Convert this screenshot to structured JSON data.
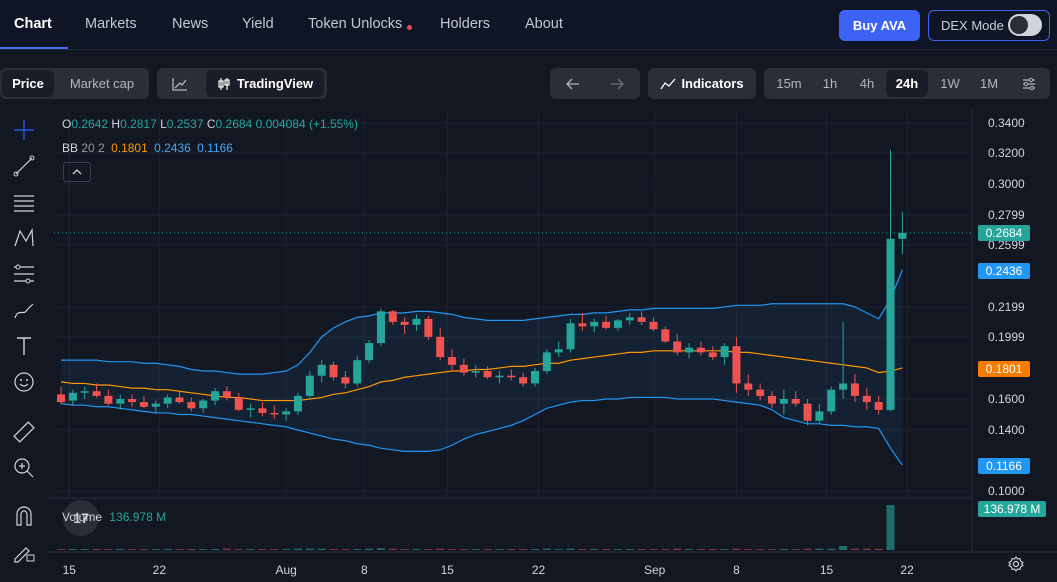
{
  "nav": {
    "tabs": [
      {
        "label": "Chart",
        "active": true
      },
      {
        "label": "Markets"
      },
      {
        "label": "News"
      },
      {
        "label": "Yield"
      },
      {
        "label": "Token Unlocks"
      },
      {
        "label": "Holders"
      },
      {
        "label": "About"
      }
    ],
    "buy_label": "Buy AVA",
    "dex_label": "DEX Mode"
  },
  "toolbar": {
    "price_label": "Price",
    "marketcap_label": "Market cap",
    "tradingview_label": "TradingView",
    "indicators_label": "Indicators",
    "timeframes": [
      "15m",
      "1h",
      "4h",
      "24h",
      "1W",
      "1M"
    ],
    "active_timeframe": "24h"
  },
  "legend": {
    "o_label": "O",
    "o": "0.2642",
    "h_label": "H",
    "h": "0.2817",
    "l_label": "L",
    "l": "0.2537",
    "c_label": "C",
    "c": "0.2684",
    "change": "0.004084 (+1.55%)",
    "bb_label": "BB",
    "bb_params": "20 2",
    "bb_mid": "0.1801",
    "bb_upper": "0.2436",
    "bb_lower": "0.1166"
  },
  "volume": {
    "label": "Volume",
    "value": "136.978 M"
  },
  "colors": {
    "up": "#26a69a",
    "down": "#ef5350",
    "bb_band": "#2196f3",
    "bb_mid": "#ff9800",
    "accent": "#3d63f5"
  },
  "chart_data": {
    "type": "candlestick",
    "y_ticks": [
      "0.3400",
      "0.3200",
      "0.3000",
      "0.2799",
      "0.2599",
      "0.2199",
      "0.1999",
      "0.1600",
      "0.1400",
      "0.1000"
    ],
    "ylim": [
      0.1,
      0.34
    ],
    "x_ticks": [
      "15",
      "22",
      "Aug",
      "8",
      "15",
      "22",
      "Sep",
      "8",
      "15",
      "22"
    ],
    "price_tags": {
      "last": "0.2684",
      "upper": "0.2436",
      "mid": "0.1801",
      "lower": "0.1166",
      "volume": "136.978 M"
    },
    "candles": [
      {
        "o": 0.163,
        "h": 0.168,
        "l": 0.157,
        "c": 0.158
      },
      {
        "o": 0.159,
        "h": 0.166,
        "l": 0.156,
        "c": 0.164
      },
      {
        "o": 0.164,
        "h": 0.168,
        "l": 0.16,
        "c": 0.165
      },
      {
        "o": 0.165,
        "h": 0.17,
        "l": 0.161,
        "c": 0.162
      },
      {
        "o": 0.162,
        "h": 0.166,
        "l": 0.156,
        "c": 0.157
      },
      {
        "o": 0.157,
        "h": 0.163,
        "l": 0.153,
        "c": 0.16
      },
      {
        "o": 0.16,
        "h": 0.163,
        "l": 0.155,
        "c": 0.158
      },
      {
        "o": 0.158,
        "h": 0.162,
        "l": 0.154,
        "c": 0.155
      },
      {
        "o": 0.155,
        "h": 0.159,
        "l": 0.151,
        "c": 0.157
      },
      {
        "o": 0.157,
        "h": 0.163,
        "l": 0.154,
        "c": 0.161
      },
      {
        "o": 0.161,
        "h": 0.165,
        "l": 0.157,
        "c": 0.158
      },
      {
        "o": 0.158,
        "h": 0.161,
        "l": 0.152,
        "c": 0.154
      },
      {
        "o": 0.154,
        "h": 0.16,
        "l": 0.151,
        "c": 0.159
      },
      {
        "o": 0.159,
        "h": 0.167,
        "l": 0.156,
        "c": 0.165
      },
      {
        "o": 0.165,
        "h": 0.168,
        "l": 0.159,
        "c": 0.161
      },
      {
        "o": 0.161,
        "h": 0.164,
        "l": 0.152,
        "c": 0.153
      },
      {
        "o": 0.153,
        "h": 0.157,
        "l": 0.148,
        "c": 0.154
      },
      {
        "o": 0.154,
        "h": 0.158,
        "l": 0.149,
        "c": 0.151
      },
      {
        "o": 0.151,
        "h": 0.156,
        "l": 0.147,
        "c": 0.15
      },
      {
        "o": 0.15,
        "h": 0.154,
        "l": 0.146,
        "c": 0.152
      },
      {
        "o": 0.152,
        "h": 0.164,
        "l": 0.15,
        "c": 0.162
      },
      {
        "o": 0.162,
        "h": 0.178,
        "l": 0.16,
        "c": 0.175
      },
      {
        "o": 0.175,
        "h": 0.185,
        "l": 0.171,
        "c": 0.182
      },
      {
        "o": 0.182,
        "h": 0.184,
        "l": 0.172,
        "c": 0.174
      },
      {
        "o": 0.174,
        "h": 0.178,
        "l": 0.167,
        "c": 0.17
      },
      {
        "o": 0.17,
        "h": 0.188,
        "l": 0.168,
        "c": 0.185
      },
      {
        "o": 0.185,
        "h": 0.198,
        "l": 0.183,
        "c": 0.196
      },
      {
        "o": 0.196,
        "h": 0.219,
        "l": 0.194,
        "c": 0.217
      },
      {
        "o": 0.217,
        "h": 0.218,
        "l": 0.208,
        "c": 0.21
      },
      {
        "o": 0.21,
        "h": 0.213,
        "l": 0.202,
        "c": 0.208
      },
      {
        "o": 0.208,
        "h": 0.215,
        "l": 0.204,
        "c": 0.212
      },
      {
        "o": 0.212,
        "h": 0.214,
        "l": 0.198,
        "c": 0.2
      },
      {
        "o": 0.2,
        "h": 0.206,
        "l": 0.185,
        "c": 0.187
      },
      {
        "o": 0.187,
        "h": 0.192,
        "l": 0.178,
        "c": 0.182
      },
      {
        "o": 0.182,
        "h": 0.186,
        "l": 0.175,
        "c": 0.177
      },
      {
        "o": 0.177,
        "h": 0.182,
        "l": 0.174,
        "c": 0.178
      },
      {
        "o": 0.178,
        "h": 0.181,
        "l": 0.173,
        "c": 0.174
      },
      {
        "o": 0.174,
        "h": 0.178,
        "l": 0.17,
        "c": 0.175
      },
      {
        "o": 0.175,
        "h": 0.179,
        "l": 0.172,
        "c": 0.174
      },
      {
        "o": 0.174,
        "h": 0.177,
        "l": 0.168,
        "c": 0.17
      },
      {
        "o": 0.17,
        "h": 0.18,
        "l": 0.168,
        "c": 0.178
      },
      {
        "o": 0.178,
        "h": 0.192,
        "l": 0.176,
        "c": 0.19
      },
      {
        "o": 0.19,
        "h": 0.197,
        "l": 0.187,
        "c": 0.192
      },
      {
        "o": 0.192,
        "h": 0.212,
        "l": 0.19,
        "c": 0.209
      },
      {
        "o": 0.209,
        "h": 0.216,
        "l": 0.204,
        "c": 0.207
      },
      {
        "o": 0.207,
        "h": 0.212,
        "l": 0.203,
        "c": 0.21
      },
      {
        "o": 0.21,
        "h": 0.214,
        "l": 0.205,
        "c": 0.206
      },
      {
        "o": 0.206,
        "h": 0.212,
        "l": 0.204,
        "c": 0.211
      },
      {
        "o": 0.211,
        "h": 0.216,
        "l": 0.208,
        "c": 0.213
      },
      {
        "o": 0.213,
        "h": 0.217,
        "l": 0.208,
        "c": 0.21
      },
      {
        "o": 0.21,
        "h": 0.213,
        "l": 0.204,
        "c": 0.205
      },
      {
        "o": 0.205,
        "h": 0.207,
        "l": 0.196,
        "c": 0.197
      },
      {
        "o": 0.197,
        "h": 0.202,
        "l": 0.188,
        "c": 0.19
      },
      {
        "o": 0.19,
        "h": 0.196,
        "l": 0.186,
        "c": 0.193
      },
      {
        "o": 0.193,
        "h": 0.197,
        "l": 0.188,
        "c": 0.19
      },
      {
        "o": 0.19,
        "h": 0.194,
        "l": 0.185,
        "c": 0.187
      },
      {
        "o": 0.187,
        "h": 0.196,
        "l": 0.182,
        "c": 0.194
      },
      {
        "o": 0.194,
        "h": 0.2,
        "l": 0.164,
        "c": 0.17
      },
      {
        "o": 0.17,
        "h": 0.176,
        "l": 0.162,
        "c": 0.166
      },
      {
        "o": 0.166,
        "h": 0.17,
        "l": 0.159,
        "c": 0.162
      },
      {
        "o": 0.162,
        "h": 0.165,
        "l": 0.154,
        "c": 0.157
      },
      {
        "o": 0.157,
        "h": 0.166,
        "l": 0.15,
        "c": 0.16
      },
      {
        "o": 0.16,
        "h": 0.165,
        "l": 0.155,
        "c": 0.157
      },
      {
        "o": 0.157,
        "h": 0.16,
        "l": 0.143,
        "c": 0.146
      },
      {
        "o": 0.146,
        "h": 0.157,
        "l": 0.144,
        "c": 0.152
      },
      {
        "o": 0.152,
        "h": 0.168,
        "l": 0.15,
        "c": 0.166
      },
      {
        "o": 0.166,
        "h": 0.21,
        "l": 0.16,
        "c": 0.17
      },
      {
        "o": 0.17,
        "h": 0.176,
        "l": 0.158,
        "c": 0.162
      },
      {
        "o": 0.162,
        "h": 0.167,
        "l": 0.153,
        "c": 0.158
      },
      {
        "o": 0.158,
        "h": 0.162,
        "l": 0.15,
        "c": 0.153
      },
      {
        "o": 0.153,
        "h": 0.322,
        "l": 0.152,
        "c": 0.264
      },
      {
        "o": 0.264,
        "h": 0.282,
        "l": 0.254,
        "c": 0.268
      }
    ],
    "bb_upper": [
      0.185,
      0.185,
      0.185,
      0.185,
      0.184,
      0.184,
      0.184,
      0.183,
      0.183,
      0.182,
      0.181,
      0.179,
      0.178,
      0.178,
      0.177,
      0.176,
      0.176,
      0.176,
      0.177,
      0.178,
      0.182,
      0.19,
      0.2,
      0.206,
      0.21,
      0.213,
      0.214,
      0.216,
      0.216,
      0.216,
      0.217,
      0.217,
      0.216,
      0.215,
      0.213,
      0.212,
      0.211,
      0.211,
      0.211,
      0.211,
      0.212,
      0.213,
      0.214,
      0.215,
      0.215,
      0.216,
      0.216,
      0.217,
      0.218,
      0.218,
      0.219,
      0.219,
      0.219,
      0.219,
      0.219,
      0.219,
      0.22,
      0.221,
      0.221,
      0.221,
      0.222,
      0.222,
      0.222,
      0.222,
      0.222,
      0.222,
      0.222,
      0.22,
      0.216,
      0.212,
      0.225,
      0.244
    ],
    "bb_mid": [
      0.171,
      0.17,
      0.17,
      0.169,
      0.169,
      0.168,
      0.167,
      0.167,
      0.166,
      0.166,
      0.165,
      0.164,
      0.163,
      0.162,
      0.161,
      0.161,
      0.16,
      0.159,
      0.159,
      0.159,
      0.159,
      0.16,
      0.161,
      0.163,
      0.164,
      0.166,
      0.168,
      0.171,
      0.172,
      0.174,
      0.175,
      0.176,
      0.177,
      0.178,
      0.178,
      0.179,
      0.179,
      0.18,
      0.181,
      0.181,
      0.182,
      0.183,
      0.183,
      0.185,
      0.186,
      0.187,
      0.188,
      0.189,
      0.19,
      0.19,
      0.191,
      0.191,
      0.191,
      0.191,
      0.191,
      0.191,
      0.191,
      0.19,
      0.19,
      0.189,
      0.188,
      0.187,
      0.186,
      0.185,
      0.184,
      0.183,
      0.182,
      0.181,
      0.18,
      0.177,
      0.178,
      0.18
    ],
    "bb_lower": [
      0.157,
      0.156,
      0.156,
      0.155,
      0.155,
      0.154,
      0.153,
      0.152,
      0.151,
      0.151,
      0.15,
      0.15,
      0.149,
      0.148,
      0.147,
      0.146,
      0.145,
      0.144,
      0.143,
      0.142,
      0.14,
      0.138,
      0.136,
      0.134,
      0.133,
      0.131,
      0.13,
      0.128,
      0.127,
      0.126,
      0.126,
      0.126,
      0.127,
      0.13,
      0.134,
      0.137,
      0.139,
      0.141,
      0.143,
      0.146,
      0.15,
      0.154,
      0.156,
      0.158,
      0.159,
      0.159,
      0.16,
      0.16,
      0.161,
      0.161,
      0.161,
      0.161,
      0.16,
      0.16,
      0.16,
      0.16,
      0.159,
      0.158,
      0.157,
      0.156,
      0.153,
      0.148,
      0.146,
      0.144,
      0.144,
      0.143,
      0.143,
      0.142,
      0.142,
      0.141,
      0.128,
      0.117
    ],
    "volume": [
      2,
      2,
      2,
      2,
      2,
      2,
      2,
      2,
      2,
      2,
      2,
      2,
      2,
      2,
      3,
      2,
      2,
      2,
      2,
      2,
      3,
      3,
      3,
      2,
      2,
      2,
      3,
      4,
      3,
      2,
      2,
      2,
      3,
      2,
      2,
      2,
      2,
      2,
      2,
      2,
      2,
      3,
      2,
      3,
      2,
      2,
      2,
      2,
      2,
      2,
      2,
      2,
      3,
      2,
      2,
      2,
      2,
      3,
      2,
      2,
      2,
      2,
      2,
      3,
      3,
      3,
      9,
      3,
      3,
      3,
      100,
      0
    ]
  }
}
